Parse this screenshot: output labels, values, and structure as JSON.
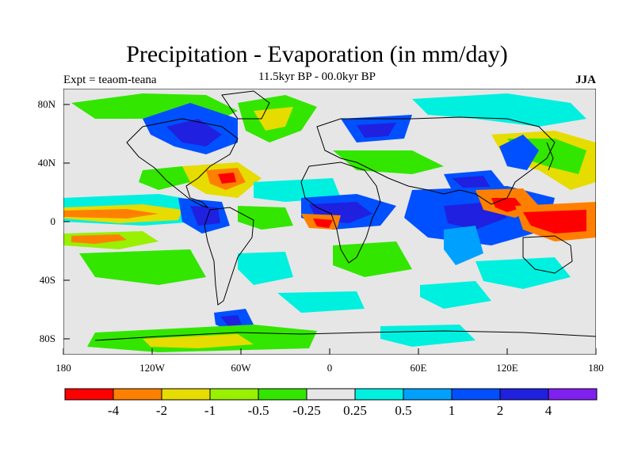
{
  "header": {
    "title": "Precipitation - Evaporation (in mm/day)",
    "subtitle": "11.5kyr BP - 00.0kyr BP",
    "experiment": "Expt = teaom-teana",
    "season": "JJA"
  },
  "axes": {
    "lat_ticks": [
      "80N",
      "40N",
      "0",
      "40S",
      "80S"
    ],
    "lon_ticks": [
      "180",
      "120W",
      "60W",
      "0",
      "60E",
      "120E",
      "180"
    ]
  },
  "colorbar": {
    "labels": [
      "-4",
      "-2",
      "-1",
      "-0.5",
      "-0.25",
      "0.25",
      "0.5",
      "1",
      "2",
      "4"
    ],
    "colors": [
      "#ff0000",
      "#ff8000",
      "#e6dc00",
      "#99f000",
      "#33e600",
      "#e6e6e6",
      "#00f0e0",
      "#00a0ff",
      "#0050ff",
      "#2020e0",
      "#8020f0"
    ]
  },
  "colors": {
    "ocean_background": "#e6e6e6",
    "coastline": "#000000"
  }
}
